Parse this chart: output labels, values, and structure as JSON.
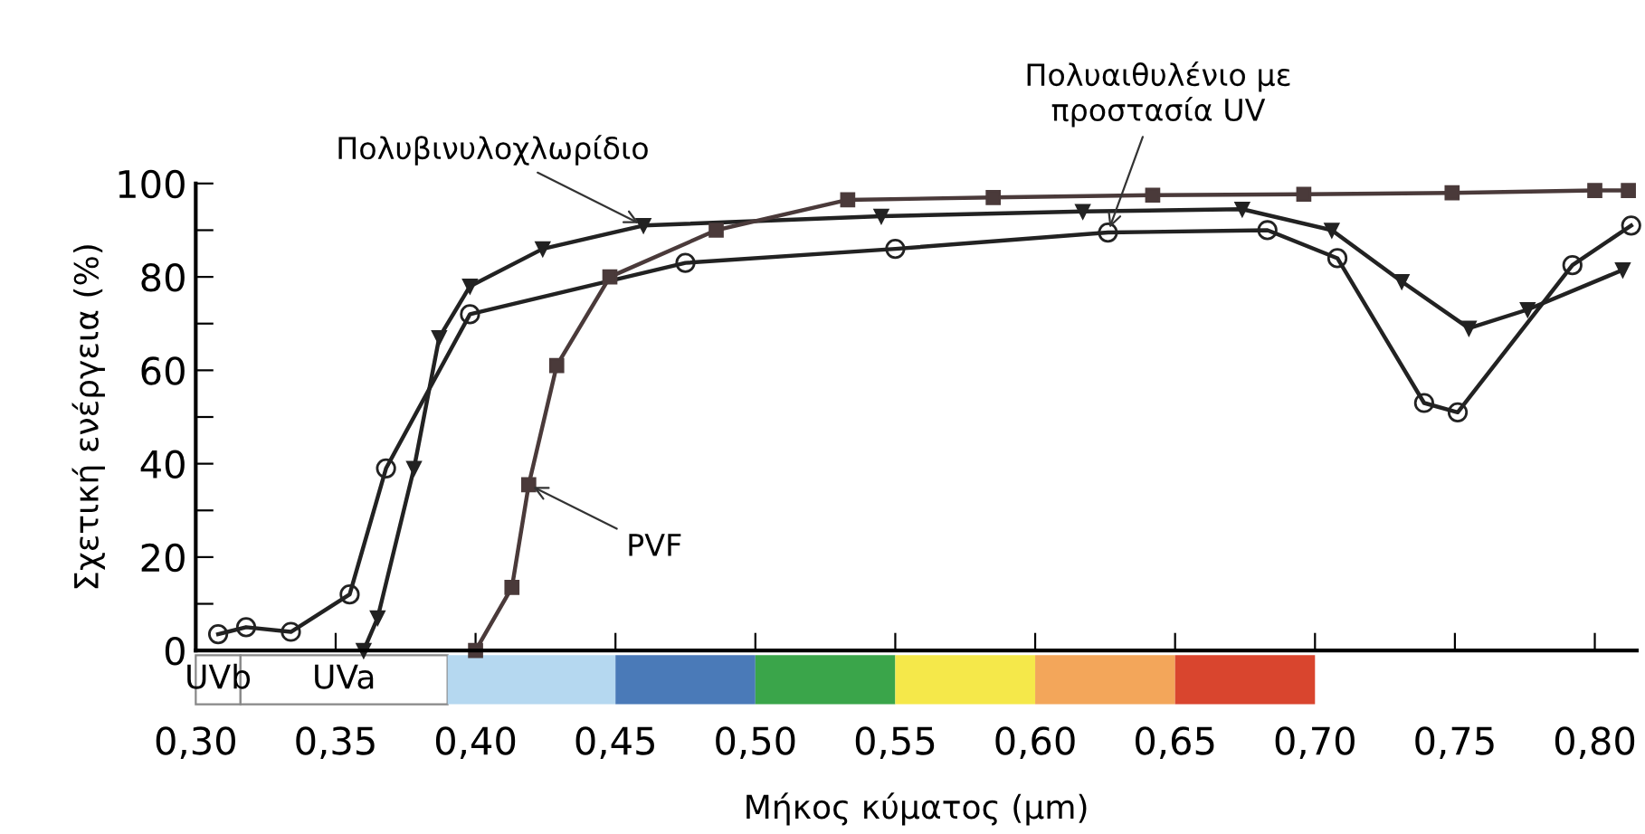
{
  "chart_data": {
    "type": "line",
    "xlabel": "Μήκος κύματος (μm)",
    "ylabel": "Σχετική ενέργεια (%)",
    "xlim": [
      0.3,
      0.815
    ],
    "ylim": [
      0,
      100
    ],
    "xticks": [
      {
        "value": 0.3,
        "label": "0,30"
      },
      {
        "value": 0.35,
        "label": "0,35"
      },
      {
        "value": 0.4,
        "label": "0,40"
      },
      {
        "value": 0.45,
        "label": "0,45"
      },
      {
        "value": 0.5,
        "label": "0,50"
      },
      {
        "value": 0.55,
        "label": "0,55"
      },
      {
        "value": 0.6,
        "label": "0,60"
      },
      {
        "value": 0.65,
        "label": "0,65"
      },
      {
        "value": 0.7,
        "label": "0,70"
      },
      {
        "value": 0.75,
        "label": "0,75"
      },
      {
        "value": 0.8,
        "label": "0,80"
      }
    ],
    "yticks": [
      0,
      {
        "value": 10,
        "label": null
      },
      20,
      {
        "value": 30,
        "label": null
      },
      40,
      {
        "value": 50,
        "label": null
      },
      60,
      {
        "value": 70,
        "label": null
      },
      80,
      {
        "value": 90,
        "label": null
      },
      100
    ],
    "grid": false,
    "legend": false,
    "series": [
      {
        "color": "#222222",
        "marker": "triangle",
        "x": [
          0.36,
          0.365,
          0.378,
          0.387,
          0.398,
          0.424,
          0.46,
          0.545,
          0.617,
          0.674,
          0.706,
          0.731,
          0.755,
          0.776,
          0.81
        ],
        "values": [
          0,
          7,
          39,
          67,
          78,
          86,
          91,
          93,
          94,
          94.5,
          90,
          79,
          69,
          73,
          81.5
        ]
      },
      {
        "color": "#222222",
        "marker": "circle",
        "x": [
          0.308,
          0.318,
          0.334,
          0.355,
          0.368,
          0.398,
          0.475,
          0.55,
          0.626,
          0.683,
          0.708,
          0.739,
          0.751,
          0.792,
          0.813
        ],
        "values": [
          3.5,
          5,
          4,
          12,
          39,
          72,
          83,
          86,
          89.5,
          90,
          84,
          53,
          51,
          82.5,
          91
        ]
      },
      {
        "color": "#4a3a3a",
        "marker": "square",
        "x": [
          0.4,
          0.413,
          0.419,
          0.429,
          0.448,
          0.486,
          0.533,
          0.585,
          0.642,
          0.696,
          0.749,
          0.8,
          0.812
        ],
        "values": [
          0,
          13.5,
          35.5,
          61,
          80,
          90,
          96.5,
          97,
          97.5,
          97.7,
          98,
          98.5,
          98.5
        ]
      }
    ],
    "annotations": [
      "UVb",
      "UVa",
      {
        "text": "Πολυβινυλοχλωρίδιο",
        "x": 0.46,
        "y": 91
      },
      {
        "text": "PVF",
        "x": 0.419,
        "y": 35.5
      },
      {
        "text": "Πολυαιθυλένιο με\nπροστασία UV",
        "x": 0.626,
        "y": 89.5
      }
    ]
  }
}
